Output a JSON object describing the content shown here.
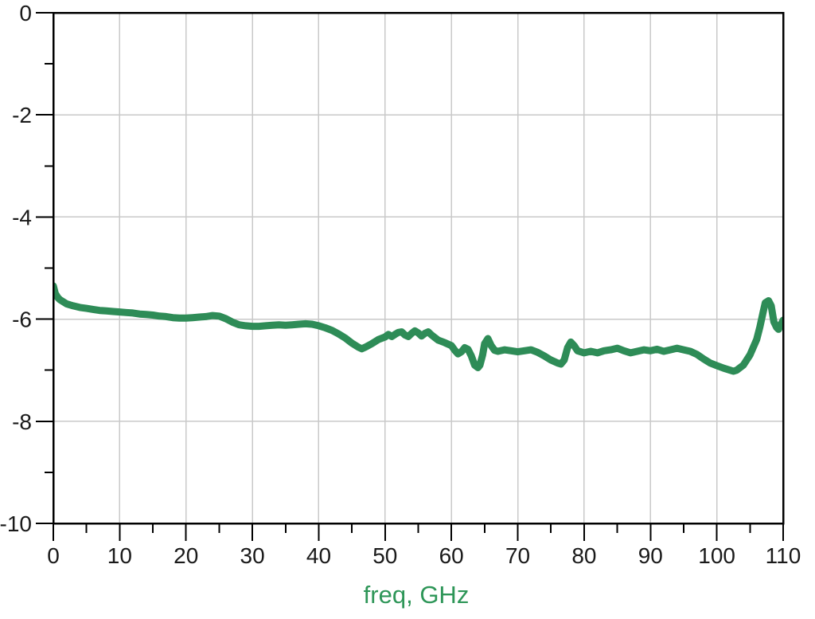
{
  "chart": {
    "xlabel": "freq, GHz",
    "colors": {
      "trace": "#2e8c57",
      "grid": "#c9c9c9",
      "axis": "#000000",
      "tick_label": "#1a1a1a",
      "xlabel_text": "#2e9658",
      "background": "#ffffff"
    }
  },
  "chart_data": {
    "type": "line",
    "title": "",
    "xlabel": "freq, GHz",
    "ylabel": "",
    "xlim": [
      0,
      110
    ],
    "ylim": [
      -10,
      0
    ],
    "x_major_ticks": [
      0,
      10,
      20,
      30,
      40,
      50,
      60,
      70,
      80,
      90,
      100,
      110
    ],
    "y_major_ticks": [
      0,
      -2,
      -4,
      -6,
      -8,
      -10
    ],
    "x_minor_ticks": [
      5,
      15,
      25,
      35,
      45,
      55,
      65,
      75,
      85,
      95,
      105
    ],
    "y_minor_ticks": [
      -1,
      -3,
      -5,
      -7,
      -9
    ],
    "grid": "major",
    "legend": "none",
    "series": [
      {
        "name": "trace",
        "color": "#2e8c57",
        "points": [
          [
            0,
            -5.35
          ],
          [
            0.3,
            -5.5
          ],
          [
            0.7,
            -5.58
          ],
          [
            1,
            -5.62
          ],
          [
            1.5,
            -5.66
          ],
          [
            2,
            -5.7
          ],
          [
            2.5,
            -5.72
          ],
          [
            3,
            -5.74
          ],
          [
            4,
            -5.77
          ],
          [
            5,
            -5.79
          ],
          [
            6,
            -5.81
          ],
          [
            7,
            -5.83
          ],
          [
            8,
            -5.84
          ],
          [
            9,
            -5.85
          ],
          [
            10,
            -5.86
          ],
          [
            11,
            -5.87
          ],
          [
            12,
            -5.88
          ],
          [
            13,
            -5.9
          ],
          [
            14,
            -5.91
          ],
          [
            15,
            -5.92
          ],
          [
            16,
            -5.94
          ],
          [
            17,
            -5.95
          ],
          [
            18,
            -5.97
          ],
          [
            19,
            -5.98
          ],
          [
            20,
            -5.98
          ],
          [
            21,
            -5.97
          ],
          [
            22,
            -5.96
          ],
          [
            23,
            -5.95
          ],
          [
            24,
            -5.93
          ],
          [
            25,
            -5.94
          ],
          [
            26,
            -5.99
          ],
          [
            27,
            -6.06
          ],
          [
            28,
            -6.11
          ],
          [
            29,
            -6.13
          ],
          [
            30,
            -6.14
          ],
          [
            31,
            -6.14
          ],
          [
            32,
            -6.13
          ],
          [
            33,
            -6.12
          ],
          [
            34,
            -6.11
          ],
          [
            35,
            -6.12
          ],
          [
            36,
            -6.11
          ],
          [
            37,
            -6.1
          ],
          [
            38,
            -6.09
          ],
          [
            39,
            -6.1
          ],
          [
            40,
            -6.13
          ],
          [
            41,
            -6.17
          ],
          [
            42,
            -6.22
          ],
          [
            43,
            -6.29
          ],
          [
            44,
            -6.37
          ],
          [
            45,
            -6.47
          ],
          [
            46,
            -6.55
          ],
          [
            46.5,
            -6.58
          ],
          [
            47,
            -6.55
          ],
          [
            48,
            -6.48
          ],
          [
            49,
            -6.4
          ],
          [
            50,
            -6.35
          ],
          [
            50.5,
            -6.3
          ],
          [
            51,
            -6.34
          ],
          [
            51.5,
            -6.3
          ],
          [
            52,
            -6.26
          ],
          [
            52.5,
            -6.25
          ],
          [
            53,
            -6.31
          ],
          [
            53.5,
            -6.34
          ],
          [
            54,
            -6.28
          ],
          [
            54.5,
            -6.23
          ],
          [
            55,
            -6.27
          ],
          [
            55.5,
            -6.33
          ],
          [
            56,
            -6.28
          ],
          [
            56.5,
            -6.25
          ],
          [
            57,
            -6.31
          ],
          [
            57.5,
            -6.36
          ],
          [
            58,
            -6.41
          ],
          [
            59,
            -6.46
          ],
          [
            60,
            -6.52
          ],
          [
            60.5,
            -6.61
          ],
          [
            61,
            -6.68
          ],
          [
            61.5,
            -6.64
          ],
          [
            62,
            -6.56
          ],
          [
            62.5,
            -6.59
          ],
          [
            63,
            -6.72
          ],
          [
            63.5,
            -6.9
          ],
          [
            64,
            -6.95
          ],
          [
            64.3,
            -6.9
          ],
          [
            64.7,
            -6.7
          ],
          [
            65,
            -6.48
          ],
          [
            65.5,
            -6.38
          ],
          [
            66,
            -6.52
          ],
          [
            66.5,
            -6.61
          ],
          [
            67,
            -6.63
          ],
          [
            68,
            -6.6
          ],
          [
            69,
            -6.62
          ],
          [
            70,
            -6.64
          ],
          [
            71,
            -6.62
          ],
          [
            72,
            -6.6
          ],
          [
            73,
            -6.65
          ],
          [
            74,
            -6.72
          ],
          [
            75,
            -6.8
          ],
          [
            76,
            -6.86
          ],
          [
            76.5,
            -6.88
          ],
          [
            77,
            -6.8
          ],
          [
            77.5,
            -6.56
          ],
          [
            78,
            -6.45
          ],
          [
            78.5,
            -6.52
          ],
          [
            79,
            -6.62
          ],
          [
            80,
            -6.66
          ],
          [
            81,
            -6.63
          ],
          [
            82,
            -6.66
          ],
          [
            83,
            -6.62
          ],
          [
            84,
            -6.6
          ],
          [
            85,
            -6.57
          ],
          [
            86,
            -6.62
          ],
          [
            87,
            -6.66
          ],
          [
            88,
            -6.63
          ],
          [
            89,
            -6.6
          ],
          [
            90,
            -6.62
          ],
          [
            91,
            -6.59
          ],
          [
            92,
            -6.63
          ],
          [
            93,
            -6.6
          ],
          [
            94,
            -6.57
          ],
          [
            95,
            -6.6
          ],
          [
            96,
            -6.63
          ],
          [
            97,
            -6.69
          ],
          [
            98,
            -6.78
          ],
          [
            99,
            -6.86
          ],
          [
            100,
            -6.91
          ],
          [
            101,
            -6.96
          ],
          [
            102,
            -7.0
          ],
          [
            102.5,
            -7.02
          ],
          [
            103,
            -7.0
          ],
          [
            104,
            -6.9
          ],
          [
            105,
            -6.7
          ],
          [
            106,
            -6.4
          ],
          [
            106.5,
            -6.15
          ],
          [
            107,
            -5.85
          ],
          [
            107.3,
            -5.68
          ],
          [
            107.8,
            -5.64
          ],
          [
            108.2,
            -5.74
          ],
          [
            108.6,
            -6.05
          ],
          [
            109,
            -6.16
          ],
          [
            109.3,
            -6.2
          ],
          [
            109.6,
            -6.12
          ],
          [
            110,
            -6.02
          ]
        ]
      }
    ]
  }
}
